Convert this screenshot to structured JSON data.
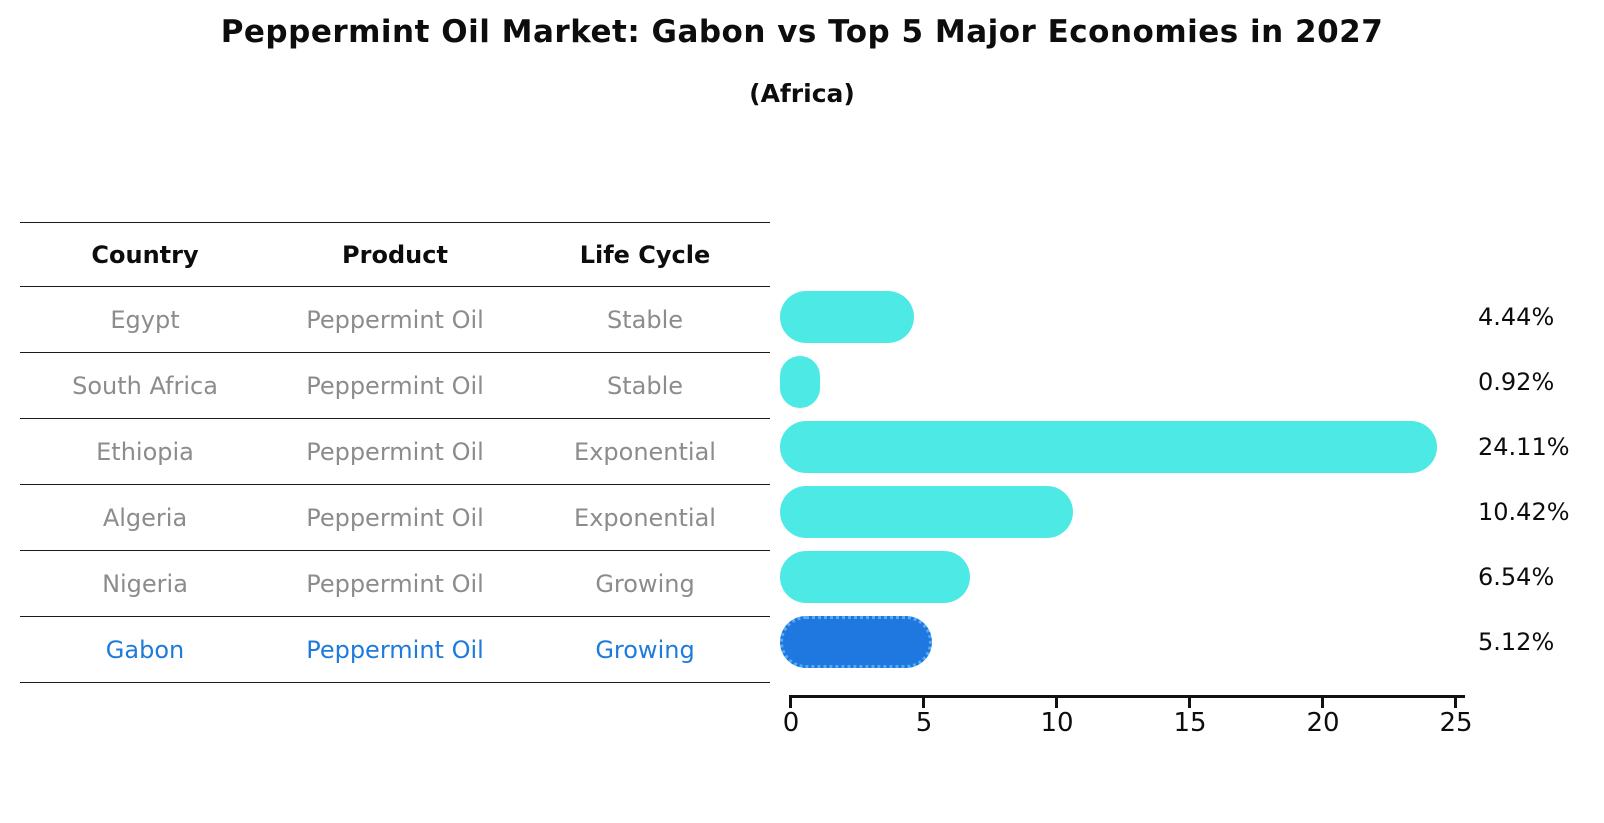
{
  "chart_data": {
    "type": "bar",
    "orientation": "horizontal",
    "title": "Peppermint Oil Market: Gabon vs Top 5 Major Economies in 2027",
    "subtitle": "(Africa)",
    "categories": [
      "Egypt",
      "South Africa",
      "Ethiopia",
      "Algeria",
      "Nigeria",
      "Gabon"
    ],
    "values": [
      4.44,
      0.92,
      24.11,
      10.42,
      6.54,
      5.12
    ],
    "value_labels": [
      "4.44%",
      "0.92%",
      "24.11%",
      "10.42%",
      "6.54%",
      "5.12%"
    ],
    "x_ticks": [
      "0",
      "5",
      "10",
      "15",
      "20",
      "25"
    ],
    "xlim": [
      0,
      25
    ],
    "grid": false,
    "legend": false,
    "bar_color": "#4de9e5",
    "highlight_bar_color": "#1e78e0",
    "highlight_index": 5
  },
  "table": {
    "headers": [
      "Country",
      "Product",
      "Life Cycle"
    ],
    "rows": [
      {
        "country": "Egypt",
        "product": "Peppermint Oil",
        "life_cycle": "Stable",
        "highlighted": false
      },
      {
        "country": "South Africa",
        "product": "Peppermint Oil",
        "life_cycle": "Stable",
        "highlighted": false
      },
      {
        "country": "Ethiopia",
        "product": "Peppermint Oil",
        "life_cycle": "Exponential",
        "highlighted": false
      },
      {
        "country": "Algeria",
        "product": "Peppermint Oil",
        "life_cycle": "Exponential",
        "highlighted": false
      },
      {
        "country": "Nigeria",
        "product": "Peppermint Oil",
        "life_cycle": "Growing",
        "highlighted": false
      },
      {
        "country": "Gabon",
        "product": "Peppermint Oil",
        "life_cycle": "Growing",
        "highlighted": true
      }
    ]
  },
  "colors": {
    "bar": "#4de9e5",
    "highlight_bar": "#1e78e0",
    "highlight_text": "#1e7bdc",
    "table_text": "#8c8c8c",
    "axis": "#111111"
  }
}
